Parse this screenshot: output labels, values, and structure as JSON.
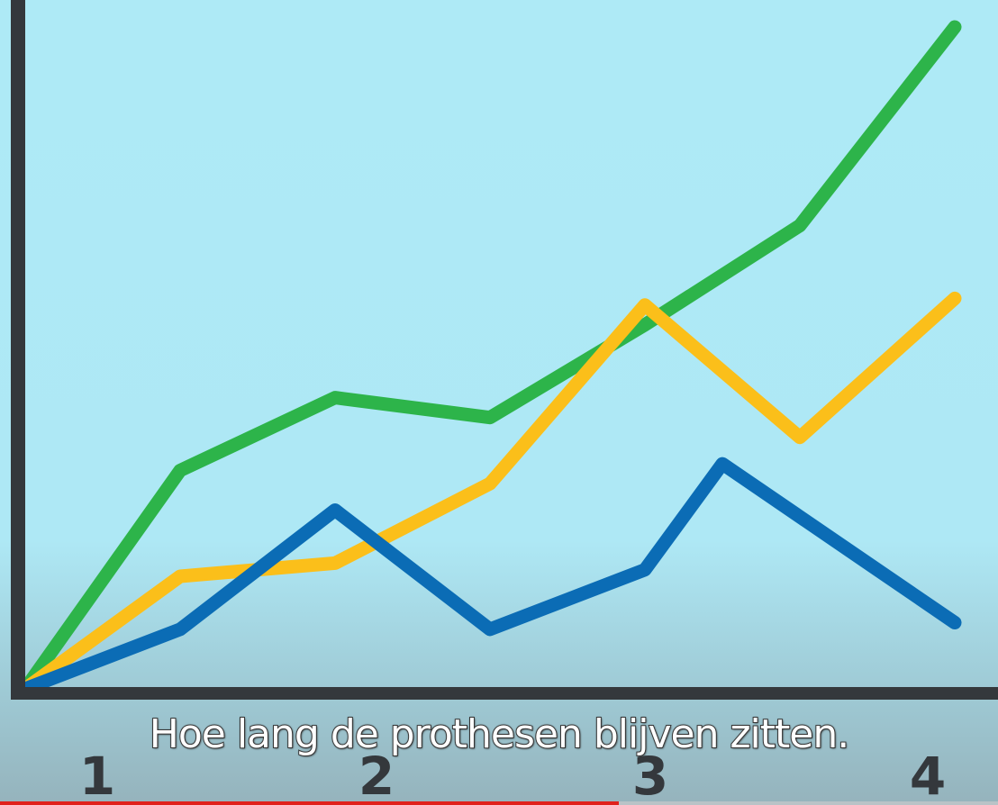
{
  "subtitle": "Hoe lang de prothesen blijven zitten.",
  "video_progress_fraction": 0.62,
  "colors": {
    "axis": "#34383c",
    "green": "#2db44a",
    "yellow": "#fbbf1a",
    "blue": "#0b6cb5",
    "background": "#aeeaf6",
    "progress": "#e0211c"
  },
  "chart_data": {
    "type": "line",
    "x_ticks": [
      "1",
      "2",
      "3",
      "4"
    ],
    "xlim": [
      0,
      12
    ],
    "ylim": [
      0,
      100
    ],
    "grid": false,
    "legend": false,
    "series": [
      {
        "color_key": "green",
        "x": [
          0,
          2,
          4,
          6,
          8,
          10,
          12
        ],
        "y": [
          0,
          33,
          44,
          41,
          55,
          70,
          100
        ]
      },
      {
        "color_key": "yellow",
        "x": [
          0,
          2,
          4,
          6,
          8,
          10,
          12
        ],
        "y": [
          0,
          17,
          19,
          31,
          58,
          38,
          59
        ]
      },
      {
        "color_key": "blue",
        "x": [
          0,
          2,
          4,
          6,
          8,
          9,
          12
        ],
        "y": [
          0,
          9,
          27,
          9,
          18,
          34,
          10
        ]
      }
    ]
  }
}
